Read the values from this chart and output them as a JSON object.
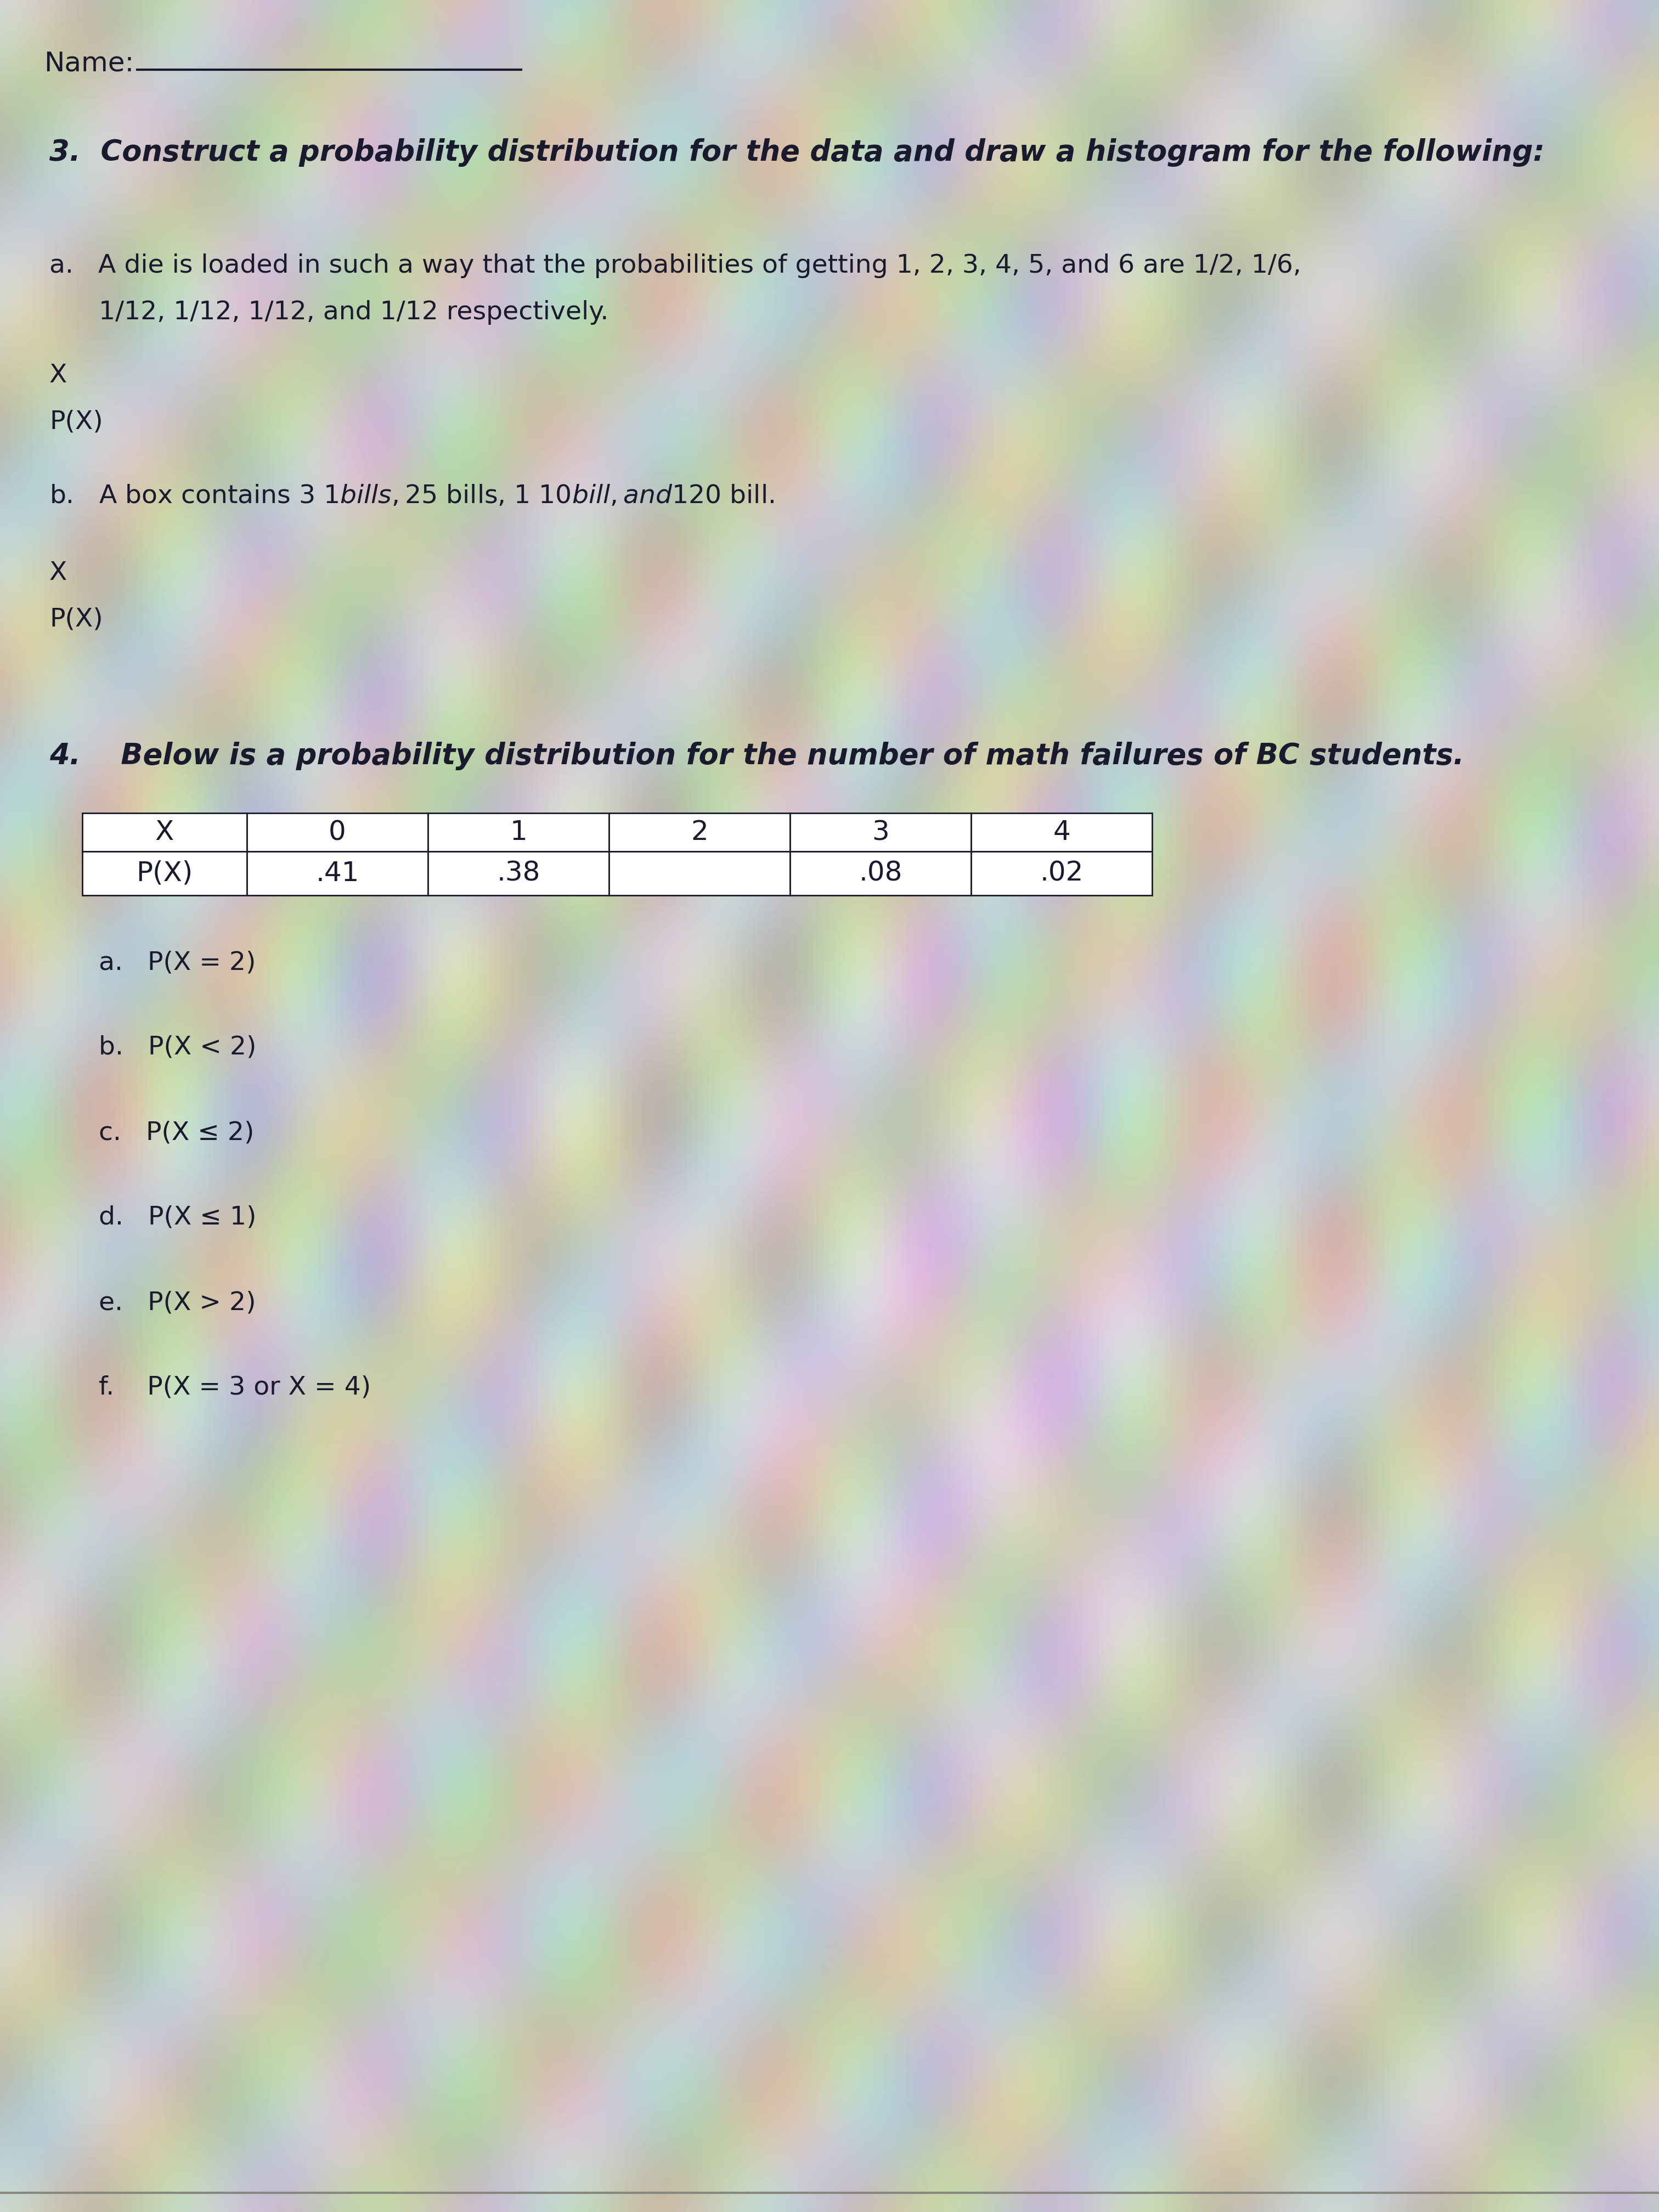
{
  "bg_color": "#c8c5bc",
  "text_color": "#1a1a2e",
  "name_label": "Name:",
  "q3_title": "3.  Construct a probability distribution for the data and draw a histogram for the following:",
  "qa_text_line1": "a.   A die is loaded in such a way that the probabilities of getting 1, 2, 3, 4, 5, and 6 are 1/2, 1/6,",
  "qa_text_line2": "      1/12, 1/12, 1/12, and 1/12 respectively.",
  "x_label_a": "X",
  "px_label_a": "P(X)",
  "qb_text": "b.   A box contains 3 $1 bills, 2 $5 bills, 1 $10 bill, and 1 $20 bill.",
  "x_label_b": "X",
  "px_label_b": "P(X)",
  "q4_title": "4.    Below is a probability distribution for the number of math failures of BC students.",
  "table_headers": [
    "X",
    "0",
    "1",
    "2",
    "3",
    "4"
  ],
  "table_row": [
    "P(X)",
    ".41",
    ".38",
    "",
    ".08",
    ".02"
  ],
  "sub_questions": [
    "a.   P(X = 2)",
    "b.   P(X < 2)",
    "c.   P(X ≤ 2)",
    "d.   P(X ≤ 1)",
    "e.   P(X > 2)",
    "f.    P(X = 3 or X = 4)"
  ],
  "font_size_name": 36,
  "font_size_title": 38,
  "font_size_body": 34,
  "font_size_table": 36
}
